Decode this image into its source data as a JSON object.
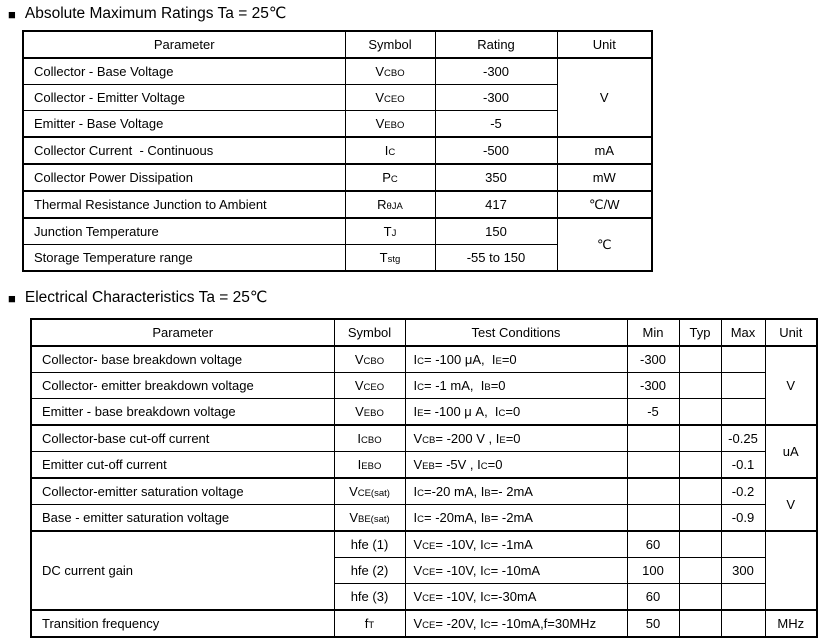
{
  "headings": {
    "bullet_icon": "■",
    "abs_max": "Absolute Maximum Ratings Ta = 25℃",
    "elec_char": "Electrical Characteristics Ta = 25℃"
  },
  "abs_max_table": {
    "headers": [
      "Parameter",
      "Symbol",
      "Rating",
      "Unit"
    ],
    "rows": [
      {
        "parameter": "Collector - Base Voltage",
        "symbol": [
          {
            "t": "V"
          },
          {
            "t": "CBO",
            "sub": true
          }
        ],
        "rating": "-300",
        "unit": {
          "label": "V",
          "rowspan": 3,
          "thick_bottom": true
        }
      },
      {
        "parameter": "Collector - Emitter Voltage",
        "symbol": [
          {
            "t": "V"
          },
          {
            "t": "CEO",
            "sub": true
          }
        ],
        "rating": "-300",
        "unit": null
      },
      {
        "parameter": "Emitter - Base Voltage",
        "symbol": [
          {
            "t": "V"
          },
          {
            "t": "EBO",
            "sub": true
          }
        ],
        "rating": "-5",
        "unit": null,
        "group_end": true
      },
      {
        "parameter": "Collector Current  - Continuous",
        "symbol": [
          {
            "t": "I"
          },
          {
            "t": "C",
            "sub": true
          }
        ],
        "rating": "-500",
        "unit": {
          "label": "mA",
          "rowspan": 1
        },
        "group_end": true
      },
      {
        "parameter": "Collector Power Dissipation",
        "symbol": [
          {
            "t": "P"
          },
          {
            "t": "C",
            "sub": true
          }
        ],
        "rating": "350",
        "unit": {
          "label": "mW",
          "rowspan": 1
        },
        "group_end": true
      },
      {
        "parameter": "Thermal Resistance Junction to Ambient",
        "symbol": [
          {
            "t": "R"
          },
          {
            "t": "θJA",
            "sub": true
          }
        ],
        "rating": "417",
        "unit": {
          "label": "℃/W",
          "rowspan": 1
        },
        "group_end": true
      },
      {
        "parameter": "Junction Temperature",
        "symbol": [
          {
            "t": "T"
          },
          {
            "t": "J",
            "sub": true
          }
        ],
        "rating": "150",
        "unit": {
          "label": "℃",
          "rowspan": 2
        }
      },
      {
        "parameter": "Storage Temperature range",
        "symbol": [
          {
            "t": "T"
          },
          {
            "t": "stg",
            "sub": true
          }
        ],
        "rating": "-55 to 150",
        "unit": null
      }
    ]
  },
  "elec_char_table": {
    "headers": [
      "Parameter",
      "Symbol",
      "Test Conditions",
      "Min",
      "Typ",
      "Max",
      "Unit"
    ],
    "rows": [
      {
        "parameter": {
          "label": "Collector- base breakdown voltage",
          "rowspan": 1
        },
        "symbol": [
          {
            "t": "V"
          },
          {
            "t": "CBO",
            "sub": true
          }
        ],
        "conditions": [
          {
            "t": "I"
          },
          {
            "t": "C",
            "sub": true
          },
          {
            "t": "= -100 μA,  "
          },
          {
            "t": "I"
          },
          {
            "t": "E",
            "sub": true
          },
          {
            "t": "=0"
          }
        ],
        "min": "-300",
        "typ": "",
        "max": "",
        "unit": {
          "label": "V",
          "rowspan": 3,
          "thick_bottom": true
        }
      },
      {
        "parameter": {
          "label": "Collector- emitter breakdown voltage",
          "rowspan": 1
        },
        "symbol": [
          {
            "t": "V"
          },
          {
            "t": "CEO",
            "sub": true
          }
        ],
        "conditions": [
          {
            "t": "I"
          },
          {
            "t": "C",
            "sub": true
          },
          {
            "t": "= -1 mA,  "
          },
          {
            "t": "I"
          },
          {
            "t": "B",
            "sub": true
          },
          {
            "t": "=0"
          }
        ],
        "min": "-300",
        "typ": "",
        "max": "",
        "unit": null
      },
      {
        "parameter": {
          "label": "Emitter - base breakdown voltage",
          "rowspan": 1
        },
        "symbol": [
          {
            "t": "V"
          },
          {
            "t": "EBO",
            "sub": true
          }
        ],
        "conditions": [
          {
            "t": "I"
          },
          {
            "t": "E",
            "sub": true
          },
          {
            "t": "= -100 μ A,  "
          },
          {
            "t": "I"
          },
          {
            "t": "C",
            "sub": true
          },
          {
            "t": "=0"
          }
        ],
        "min": "-5",
        "typ": "",
        "max": "",
        "unit": null,
        "group_end": true
      },
      {
        "parameter": {
          "label": "Collector-base cut-off current",
          "rowspan": 1
        },
        "symbol": [
          {
            "t": "I"
          },
          {
            "t": "CBO",
            "sub": true
          }
        ],
        "conditions": [
          {
            "t": "V"
          },
          {
            "t": "CB",
            "sub": true
          },
          {
            "t": "= -200 V , "
          },
          {
            "t": "I"
          },
          {
            "t": "E",
            "sub": true
          },
          {
            "t": "=0"
          }
        ],
        "min": "",
        "typ": "",
        "max": "-0.25",
        "unit": {
          "label": "uA",
          "rowspan": 2,
          "thick_bottom": true
        }
      },
      {
        "parameter": {
          "label": "Emitter cut-off current",
          "rowspan": 1
        },
        "symbol": [
          {
            "t": "I"
          },
          {
            "t": "EBO",
            "sub": true
          }
        ],
        "conditions": [
          {
            "t": "V"
          },
          {
            "t": "EB",
            "sub": true
          },
          {
            "t": "= -5V , "
          },
          {
            "t": "I"
          },
          {
            "t": "C",
            "sub": true
          },
          {
            "t": "=0"
          }
        ],
        "min": "",
        "typ": "",
        "max": "-0.1",
        "unit": null,
        "group_end": true
      },
      {
        "parameter": {
          "label": "Collector-emitter saturation voltage",
          "rowspan": 1
        },
        "symbol": [
          {
            "t": "V"
          },
          {
            "t": "CE(sat)",
            "sub": true
          }
        ],
        "conditions": [
          {
            "t": "I"
          },
          {
            "t": "C",
            "sub": true
          },
          {
            "t": "=-20 mA, "
          },
          {
            "t": "I"
          },
          {
            "t": "B",
            "sub": true
          },
          {
            "t": "=- 2mA"
          }
        ],
        "min": "",
        "typ": "",
        "max": "-0.2",
        "unit": {
          "label": "V",
          "rowspan": 2,
          "thick_bottom": true
        }
      },
      {
        "parameter": {
          "label": "Base - emitter saturation voltage",
          "rowspan": 1
        },
        "symbol": [
          {
            "t": "V"
          },
          {
            "t": "BE(sat)",
            "sub": true
          }
        ],
        "conditions": [
          {
            "t": "I"
          },
          {
            "t": "C",
            "sub": true
          },
          {
            "t": "= -20mA, "
          },
          {
            "t": "I"
          },
          {
            "t": "B",
            "sub": true
          },
          {
            "t": "= -2mA"
          }
        ],
        "min": "",
        "typ": "",
        "max": "-0.9",
        "unit": null,
        "group_end": true
      },
      {
        "parameter": {
          "label": "DC current gain",
          "rowspan": 3,
          "thick_bottom": true
        },
        "symbol": [
          {
            "t": "hfe (1)"
          }
        ],
        "conditions": [
          {
            "t": "V"
          },
          {
            "t": "CE",
            "sub": true
          },
          {
            "t": "= -10V, "
          },
          {
            "t": "I"
          },
          {
            "t": "C",
            "sub": true
          },
          {
            "t": "= -1mA"
          }
        ],
        "min": "60",
        "typ": "",
        "max": "",
        "unit": {
          "label": "",
          "rowspan": 3,
          "thick_bottom": true
        }
      },
      {
        "parameter": null,
        "symbol": [
          {
            "t": "hfe (2)"
          }
        ],
        "conditions": [
          {
            "t": "V"
          },
          {
            "t": "CE",
            "sub": true
          },
          {
            "t": "= -10V, "
          },
          {
            "t": "I"
          },
          {
            "t": "C",
            "sub": true
          },
          {
            "t": "= -10mA"
          }
        ],
        "min": "100",
        "typ": "",
        "max": "300",
        "unit": null
      },
      {
        "parameter": null,
        "symbol": [
          {
            "t": "hfe (3)"
          }
        ],
        "conditions": [
          {
            "t": "V"
          },
          {
            "t": "CE",
            "sub": true
          },
          {
            "t": "= -10V, "
          },
          {
            "t": "I"
          },
          {
            "t": "C",
            "sub": true
          },
          {
            "t": "=-30mA"
          }
        ],
        "min": "60",
        "typ": "",
        "max": "",
        "unit": null,
        "group_end": true
      },
      {
        "parameter": {
          "label": "Transition frequency",
          "rowspan": 1
        },
        "symbol": [
          {
            "t": "f"
          },
          {
            "t": "T",
            "sub": true
          }
        ],
        "conditions": [
          {
            "t": "V"
          },
          {
            "t": "CE",
            "sub": true
          },
          {
            "t": "= -20V, "
          },
          {
            "t": "I"
          },
          {
            "t": "C",
            "sub": true
          },
          {
            "t": "= -10mA,f=30MHz"
          }
        ],
        "min": "50",
        "typ": "",
        "max": "",
        "unit": {
          "label": "MHz",
          "rowspan": 1
        }
      }
    ]
  }
}
